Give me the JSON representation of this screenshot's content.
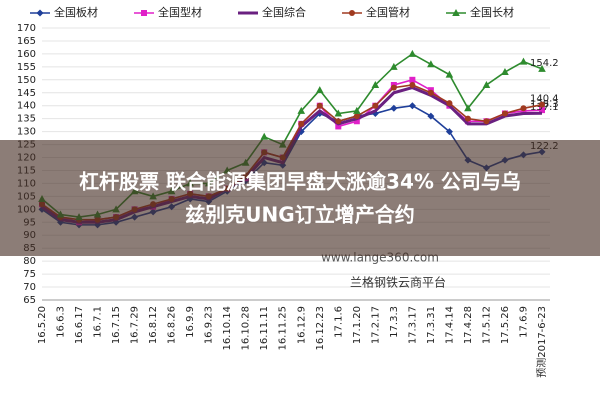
{
  "chart_data": {
    "type": "line",
    "categories": [
      "16.5.20",
      "16.6.3",
      "16.6.17",
      "16.7.1",
      "16.7.15",
      "16.7.29",
      "16.8.12",
      "16.8.26",
      "16.9.9",
      "16.9.23",
      "16.10.14",
      "16.10.28",
      "16.11.11",
      "16.11.25",
      "16.12.9",
      "16.12.23",
      "17.1.6",
      "17.1.20",
      "17.2.17",
      "17.3.3",
      "17.3.17",
      "17.3.31",
      "17.4.14",
      "17.4.28",
      "17.5.12",
      "17.5.26",
      "17.6.9",
      "预测2017-6-23"
    ],
    "series": [
      {
        "name": "全国板材",
        "color": "#1f3f9a",
        "marker": "diamond",
        "values": [
          100,
          95,
          94,
          94,
          95,
          97,
          99,
          101,
          104,
          103,
          107,
          111,
          118,
          117,
          130,
          137,
          134,
          136,
          137,
          139,
          140,
          136,
          130,
          119,
          116,
          119,
          121,
          122.2
        ]
      },
      {
        "name": "全国型材",
        "color": "#e020c8",
        "marker": "square",
        "values": [
          102,
          97,
          95,
          96,
          97,
          100,
          101,
          104,
          106,
          105,
          108,
          112,
          122,
          120,
          133,
          140,
          132,
          134,
          140,
          148,
          150,
          146,
          140,
          134,
          134,
          137,
          138,
          138.3
        ]
      },
      {
        "name": "全国综合",
        "color": "#6a2080",
        "marker": "none",
        "values": [
          101,
          96,
          95,
          95,
          96,
          99,
          101,
          103,
          105,
          104,
          108,
          112,
          120,
          118,
          132,
          138,
          133,
          135,
          138,
          145,
          147,
          144,
          140,
          133,
          133,
          136,
          137,
          137.1
        ]
      },
      {
        "name": "全国管材",
        "color": "#a03a20",
        "marker": "circle",
        "values": [
          102,
          97,
          96,
          96,
          97,
          100,
          102,
          104,
          106,
          105,
          108,
          113,
          122,
          120,
          133,
          140,
          134,
          136,
          140,
          147,
          148,
          145,
          141,
          135,
          134,
          137,
          139,
          140.4
        ]
      },
      {
        "name": "全国长材",
        "color": "#2e8b2e",
        "marker": "triangle",
        "values": [
          104,
          98,
          97,
          98,
          100,
          107,
          105,
          107,
          110,
          110,
          115,
          118,
          128,
          125,
          138,
          146,
          137,
          138,
          148,
          155,
          160,
          156,
          152,
          139,
          148,
          153,
          157,
          154.2
        ]
      }
    ],
    "ylim": [
      65,
      170
    ],
    "yticks": [
      65,
      70,
      75,
      80,
      85,
      90,
      95,
      100,
      105,
      110,
      115,
      120,
      125,
      130,
      135,
      140,
      145,
      150,
      155,
      160,
      165,
      170
    ],
    "grid": true
  },
  "watermark": [
    "www.lange360.com",
    "兰格钢铁云商平台"
  ],
  "banner": [
    "杠杆股票 联合能源集团早盘大涨逾34% 公司与乌",
    "兹别克UNG订立增产合约"
  ]
}
